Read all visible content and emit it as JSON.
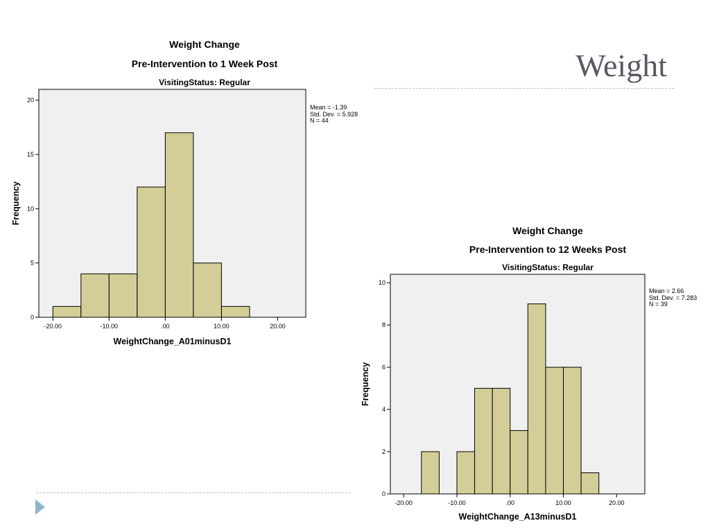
{
  "slide": {
    "title": "Weight"
  },
  "colors": {
    "bar_fill": "#d3ce98",
    "plot_bg": "#f0f0f0",
    "title_color": "#555a63",
    "accent_line": "#a9c1d3",
    "arrow": "#8fb6cc"
  },
  "icons": {
    "bullet": "play-arrow-icon"
  },
  "chart_data": [
    {
      "type": "bar",
      "title": "Weight Change",
      "subtitle": "Pre-Intervention to 1 Week Post",
      "panel_title": "VisitingStatus: Regular",
      "xlabel": "WeightChange_A01minusD1",
      "ylabel": "Frequency",
      "xlim": [
        -22.5,
        25
      ],
      "ylim": [
        0,
        21
      ],
      "x_ticks": [
        -20,
        -10,
        0,
        10,
        20
      ],
      "x_tick_labels": [
        "-20.00",
        "-10.00",
        ".00",
        "10.00",
        "20.00"
      ],
      "y_ticks": [
        0,
        5,
        10,
        15,
        20
      ],
      "y_tick_labels": [
        "0",
        "5",
        "10",
        "15",
        "20"
      ],
      "bin_width": 5,
      "bins": [
        {
          "start": -20,
          "end": -15,
          "count": 1
        },
        {
          "start": -15,
          "end": -10,
          "count": 4
        },
        {
          "start": -10,
          "end": -5,
          "count": 4
        },
        {
          "start": -5,
          "end": 0,
          "count": 12
        },
        {
          "start": 0,
          "end": 5,
          "count": 17
        },
        {
          "start": 5,
          "end": 10,
          "count": 5
        },
        {
          "start": 10,
          "end": 15,
          "count": 1
        }
      ],
      "stats": {
        "mean": "Mean = -1.39",
        "sd": "Std. Dev. = 5.928",
        "n": "N = 44"
      },
      "grid": false,
      "legend": "none"
    },
    {
      "type": "bar",
      "title": "Weight Change",
      "subtitle": "Pre-Intervention to 12 Weeks Post",
      "panel_title": "VisitingStatus: Regular",
      "xlabel": "WeightChange_A13minusD1",
      "ylabel": "Frequency",
      "xlim": [
        -22.5,
        25.3
      ],
      "ylim": [
        0,
        10.4
      ],
      "x_ticks": [
        -20,
        -10,
        0,
        10,
        20
      ],
      "x_tick_labels": [
        "-20.00",
        "-10.00",
        ".00",
        "10.00",
        "20.00"
      ],
      "y_ticks": [
        0,
        2,
        4,
        6,
        8,
        10
      ],
      "y_tick_labels": [
        "0",
        "2",
        "4",
        "6",
        "8",
        "10"
      ],
      "bin_width": 3.33,
      "bins": [
        {
          "start": -16.67,
          "end": -13.33,
          "count": 2
        },
        {
          "start": -13.33,
          "end": -10,
          "count": 0
        },
        {
          "start": -10,
          "end": -6.67,
          "count": 2
        },
        {
          "start": -6.67,
          "end": -3.33,
          "count": 5
        },
        {
          "start": -3.33,
          "end": 0,
          "count": 5
        },
        {
          "start": 0,
          "end": 3.33,
          "count": 3
        },
        {
          "start": 3.33,
          "end": 6.67,
          "count": 9
        },
        {
          "start": 6.67,
          "end": 10,
          "count": 6
        },
        {
          "start": 10,
          "end": 13.33,
          "count": 6
        },
        {
          "start": 13.33,
          "end": 16.67,
          "count": 1
        }
      ],
      "stats": {
        "mean": "Mean = 2.66",
        "sd": "Std. Dev. = 7.283",
        "n": "N = 39"
      },
      "grid": false,
      "legend": "none"
    }
  ]
}
